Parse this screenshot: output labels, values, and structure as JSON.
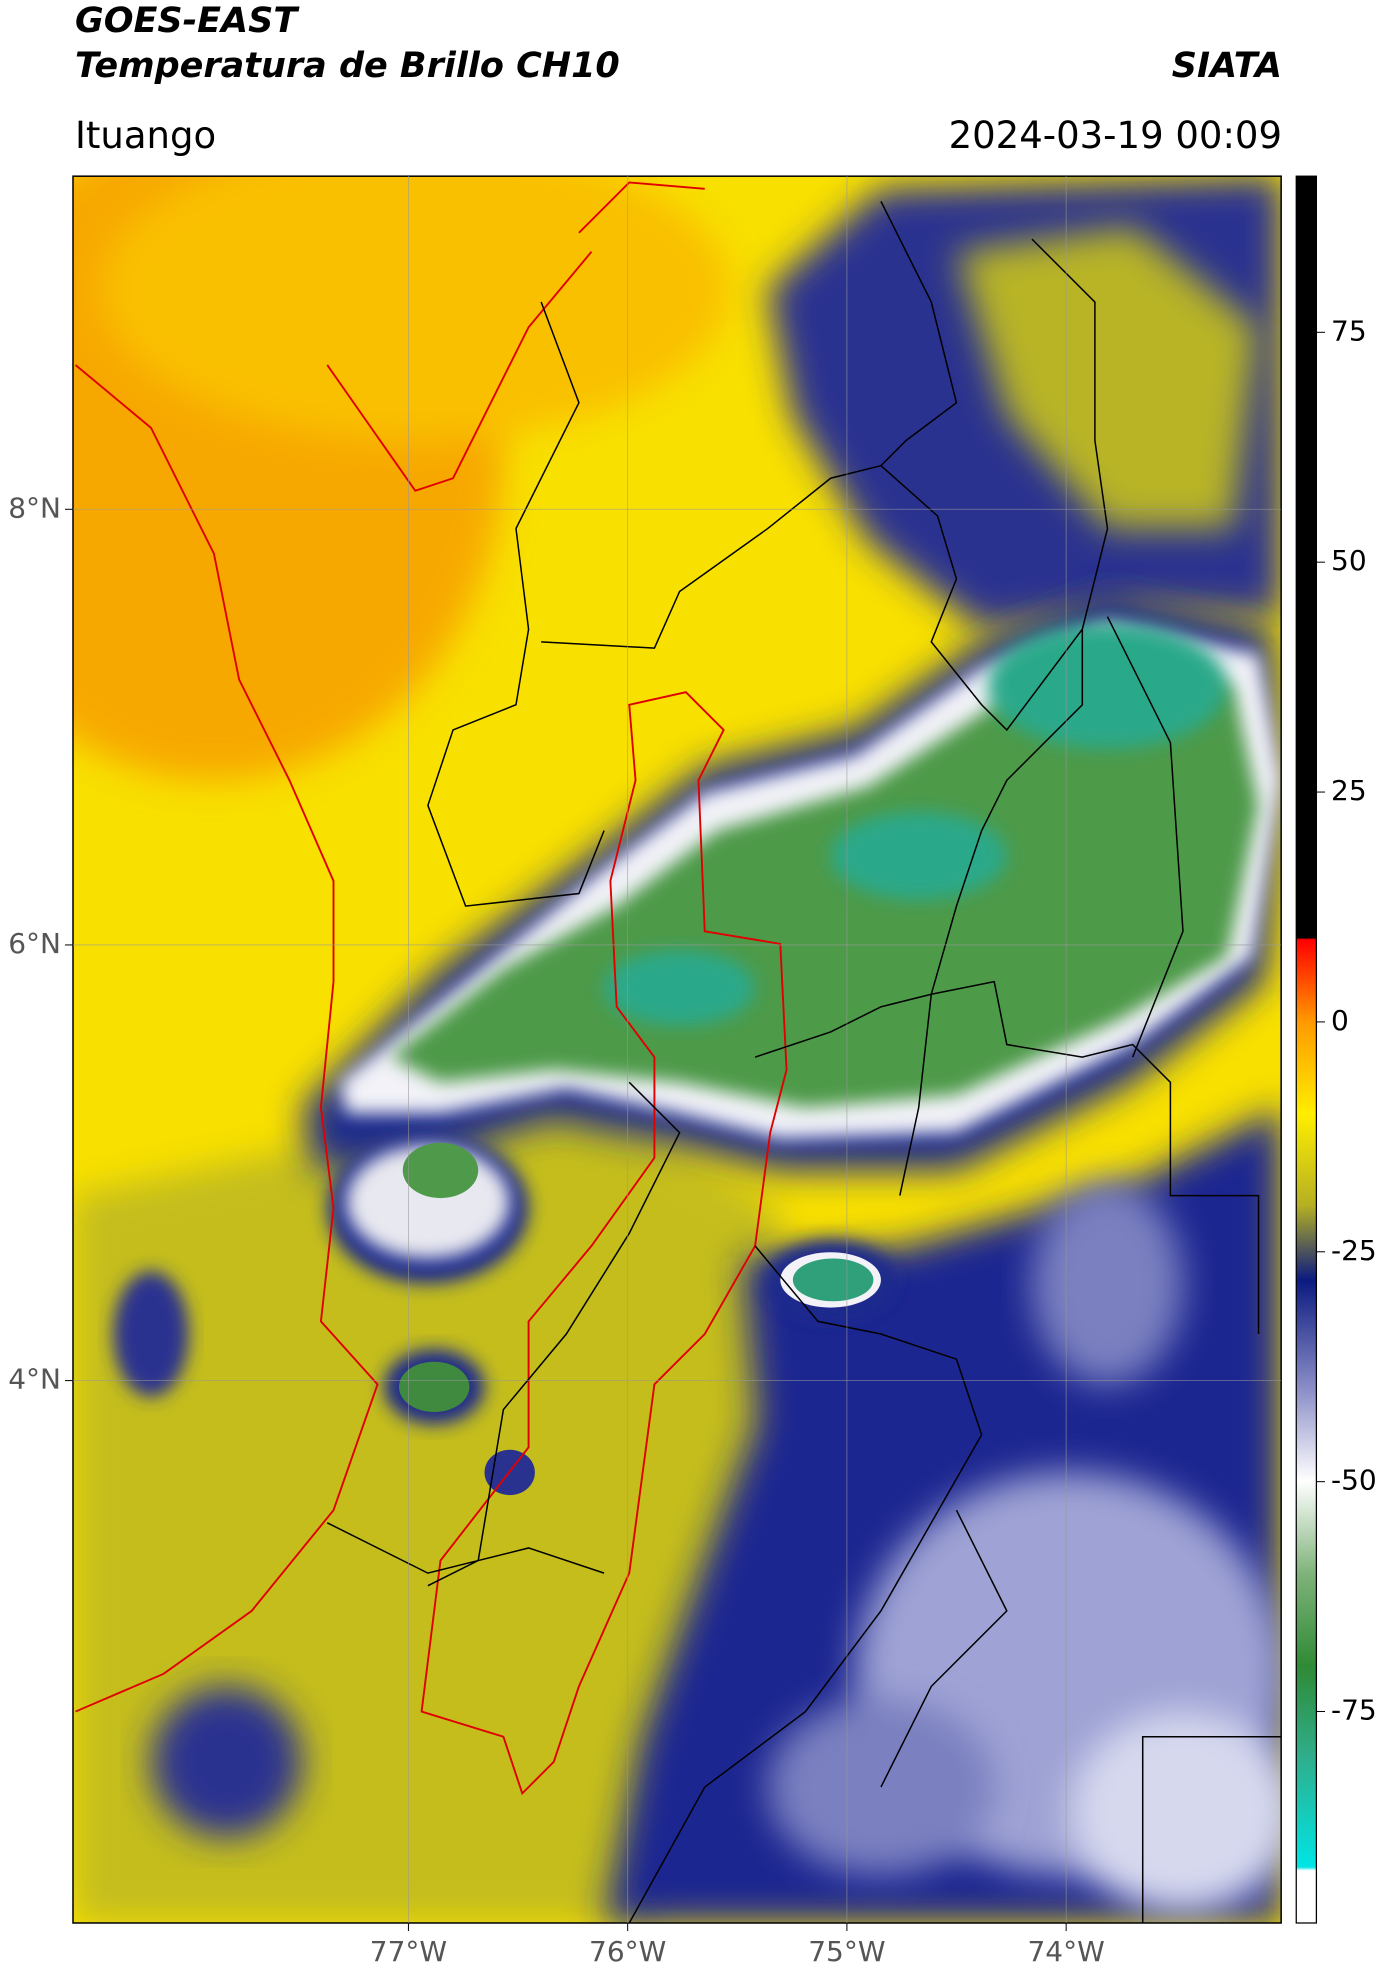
{
  "header": {
    "title": "GOES-EAST",
    "subtitle": "Temperatura de Brillo CH10",
    "source": "SIATA",
    "location": "Ituango",
    "datetime": "2024-03-19 00:09"
  },
  "map": {
    "xlim": [
      -78.53,
      -73.02
    ],
    "ylim": [
      1.51,
      9.53
    ],
    "xticks": [
      {
        "value": -77,
        "label": "77°W"
      },
      {
        "value": -76,
        "label": "76°W"
      },
      {
        "value": -75,
        "label": "75°W"
      },
      {
        "value": -74,
        "label": "74°W"
      }
    ],
    "yticks": [
      {
        "value": 4,
        "label": "4°N"
      },
      {
        "value": 6,
        "label": "6°N"
      },
      {
        "value": 8,
        "label": "8°N"
      }
    ],
    "grid": true
  },
  "colorbar": {
    "lim": [
      -98,
      92
    ],
    "ticks": [
      75,
      50,
      25,
      0,
      -25,
      -50,
      -75
    ]
  }
}
